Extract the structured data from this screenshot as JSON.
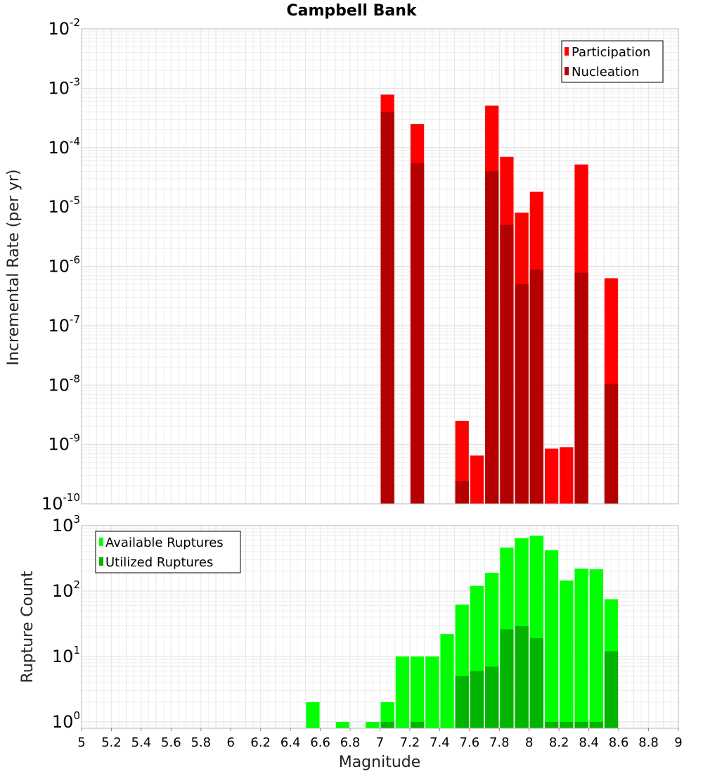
{
  "chart_data": [
    {
      "type": "bar",
      "title": "Campbell Bank",
      "ylabel": "Incremental Rate (per yr)",
      "xlabel": "",
      "yscale": "log",
      "ylim": [
        1e-10,
        0.01
      ],
      "xlim": [
        5,
        9
      ],
      "grid": true,
      "legend_position": "top-right",
      "x": [
        7.05,
        7.25,
        7.55,
        7.65,
        7.75,
        7.85,
        7.95,
        8.05,
        8.15,
        8.25,
        8.35,
        8.55
      ],
      "series": [
        {
          "name": "Participation",
          "color": "#ff0000",
          "values": [
            0.00078,
            0.00025,
            2.5e-09,
            6.5e-10,
            0.00051,
            7e-05,
            8e-06,
            1.8e-05,
            8.5e-10,
            9e-10,
            5.2e-05,
            6.3e-07
          ]
        },
        {
          "name": "Nucleation",
          "color": "#b40000",
          "values": [
            0.0004,
            5.5e-05,
            2.4e-10,
            null,
            4e-05,
            5e-06,
            5e-07,
            8.8e-07,
            null,
            null,
            7.8e-07,
            1.05e-08
          ]
        }
      ]
    },
    {
      "type": "bar",
      "ylabel": "Rupture Count",
      "xlabel": "Magnitude",
      "yscale": "log",
      "ylim": [
        0.8,
        1000
      ],
      "xlim": [
        5,
        9
      ],
      "xticks": [
        "5",
        "5.2",
        "5.4",
        "5.6",
        "5.8",
        "6",
        "6.2",
        "6.4",
        "6.6",
        "6.8",
        "7",
        "7.2",
        "7.4",
        "7.6",
        "7.8",
        "8",
        "8.2",
        "8.4",
        "8.6",
        "8.8",
        "9"
      ],
      "grid": true,
      "legend_position": "top-left",
      "x": [
        6.55,
        6.75,
        6.95,
        7.05,
        7.15,
        7.25,
        7.35,
        7.45,
        7.55,
        7.65,
        7.75,
        7.85,
        7.95,
        8.05,
        8.15,
        8.25,
        8.35,
        8.45,
        8.55
      ],
      "series": [
        {
          "name": "Available Ruptures",
          "color": "#00ff00",
          "values": [
            2,
            1,
            1,
            2,
            10,
            10,
            10,
            22,
            62,
            120,
            190,
            460,
            640,
            700,
            420,
            145,
            220,
            215,
            75
          ]
        },
        {
          "name": "Utilized Ruptures",
          "color": "#00b400",
          "values": [
            null,
            null,
            null,
            1,
            null,
            1,
            null,
            null,
            5,
            6,
            7,
            26,
            29,
            19,
            1,
            1,
            1,
            1,
            12
          ]
        }
      ]
    }
  ]
}
